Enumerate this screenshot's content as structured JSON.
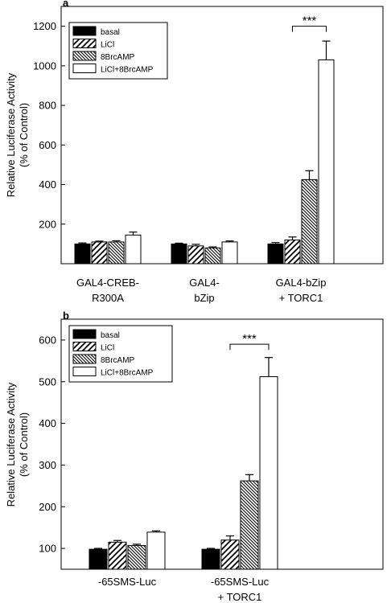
{
  "chart_data": [
    {
      "type": "bar",
      "panel_label": "a",
      "ylabel_line1": "Relative Luciferase Activity",
      "ylabel_line2": "(% of Control)",
      "ylim": [
        0,
        1300
      ],
      "yticks": [
        200,
        400,
        600,
        800,
        1000,
        1200
      ],
      "categories": [
        [
          "GAL4-CREB-",
          "R300A"
        ],
        [
          "GAL4-",
          "bZip"
        ],
        [
          "GAL4-bZip",
          "+ TORC1"
        ]
      ],
      "series": [
        {
          "name": "basal",
          "pattern": "solid",
          "values": [
            100,
            100,
            100
          ],
          "errors": [
            5,
            4,
            7
          ]
        },
        {
          "name": "LiCl",
          "pattern": "diag-up",
          "values": [
            110,
            90,
            120
          ],
          "errors": [
            4,
            8,
            15
          ]
        },
        {
          "name": "8BrcAMP",
          "pattern": "diag-down",
          "values": [
            110,
            80,
            425
          ],
          "errors": [
            6,
            5,
            45
          ]
        },
        {
          "name": "LiCl+8BrcAMP",
          "pattern": "white",
          "values": [
            145,
            110,
            1030
          ],
          "errors": [
            15,
            5,
            95
          ]
        }
      ],
      "significance": {
        "label": "***",
        "category_index": 2,
        "from_series": 1,
        "to_series": 3,
        "y": 1200
      },
      "legend_position": "top-left"
    },
    {
      "type": "bar",
      "panel_label": "b",
      "ylabel_line1": "Relative Luciferase Activity",
      "ylabel_line2": "(% of Control)",
      "ylim": [
        50,
        650
      ],
      "yticks": [
        100,
        200,
        300,
        400,
        500,
        600
      ],
      "categories": [
        [
          "-65SMS-Luc"
        ],
        [
          "-65SMS-Luc",
          "+ TORC1"
        ]
      ],
      "series": [
        {
          "name": "basal",
          "pattern": "solid",
          "values": [
            98,
            98
          ],
          "errors": [
            2,
            2
          ]
        },
        {
          "name": "LiCl",
          "pattern": "diag-up",
          "values": [
            115,
            120
          ],
          "errors": [
            4,
            10
          ]
        },
        {
          "name": "8BrcAMP",
          "pattern": "diag-down",
          "values": [
            107,
            262
          ],
          "errors": [
            3,
            15
          ]
        },
        {
          "name": "LiCl+8BrcAMP",
          "pattern": "white",
          "values": [
            139,
            512
          ],
          "errors": [
            3,
            46
          ]
        }
      ],
      "significance": {
        "label": "***",
        "category_index": 1,
        "from_series": 1,
        "to_series": 3,
        "y": 590
      },
      "legend_position": "top-left"
    }
  ]
}
